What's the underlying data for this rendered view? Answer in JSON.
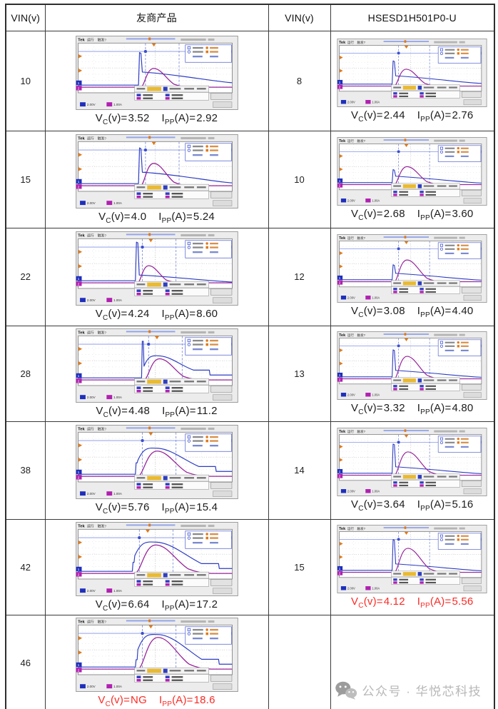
{
  "table": {
    "headers": [
      "VIN(v)",
      "友商产品",
      "VIN(v)",
      "HSESD1H501P0-U"
    ],
    "caption_format": {
      "v": "V",
      "v_sub": "C",
      "v_unit": "(v)=",
      "i": "I",
      "i_sub": "PP",
      "i_unit": "(A)="
    },
    "rows": [
      {
        "vin_left": "10",
        "left": {
          "vc": "3.52",
          "ipp": "2.92",
          "red": false,
          "wave": {
            "sx": 0.4,
            "spike": 0.8,
            "mid": 0.32,
            "tail": 0.18,
            "hump": 0.46,
            "humpW": 0.3,
            "blueHump": false
          }
        },
        "vin_right": "8",
        "right": {
          "vc": "2.44",
          "ipp": "2.76",
          "red": false,
          "wave": {
            "sx": 0.38,
            "spike": 0.62,
            "mid": 0.22,
            "tail": 0.14,
            "hump": 0.45,
            "humpW": 0.3,
            "blueHump": false
          }
        }
      },
      {
        "vin_left": "15",
        "left": {
          "vc": "4.0",
          "ipp": "5.24",
          "red": false,
          "wave": {
            "sx": 0.4,
            "spike": 0.88,
            "mid": 0.28,
            "tail": 0.14,
            "hump": 0.55,
            "humpW": 0.3,
            "blueHump": false
          }
        },
        "vin_right": "10",
        "right": {
          "vc": "2.68",
          "ipp": "3.60",
          "red": false,
          "wave": {
            "sx": 0.38,
            "spike": 0.35,
            "mid": 0.17,
            "tail": 0.11,
            "hump": 0.48,
            "humpW": 0.32,
            "blueHump": false
          }
        }
      },
      {
        "vin_left": "22",
        "left": {
          "vc": "4.24",
          "ipp": "8.60",
          "red": false,
          "wave": {
            "sx": 0.38,
            "spike": 0.95,
            "mid": 0.14,
            "tail": 0.09,
            "hump": 0.42,
            "humpW": 0.26,
            "blueHump": false
          }
        },
        "vin_right": "12",
        "right": {
          "vc": "3.08",
          "ipp": "4.40",
          "red": false,
          "wave": {
            "sx": 0.38,
            "spike": 0.4,
            "mid": 0.17,
            "tail": 0.11,
            "hump": 0.58,
            "humpW": 0.32,
            "blueHump": false
          }
        }
      },
      {
        "vin_left": "28",
        "left": {
          "vc": "4.48",
          "ipp": "11.2",
          "red": false,
          "wave": {
            "sx": 0.42,
            "spike": 0.9,
            "hump": 0.52,
            "humpW": 0.36,
            "blueHump": true
          }
        },
        "vin_right": "13",
        "right": {
          "vc": "3.32",
          "ipp": "4.80",
          "red": false,
          "wave": {
            "sx": 0.38,
            "spike": 0.72,
            "mid": 0.17,
            "tail": 0.11,
            "hump": 0.6,
            "humpW": 0.32,
            "blueHump": false
          }
        }
      },
      {
        "vin_left": "38",
        "left": {
          "vc": "5.76",
          "ipp": "15.4",
          "red": false,
          "wave": {
            "sx": 0.38,
            "spike": 0.28,
            "hump": 0.62,
            "humpW": 0.44,
            "blueHump": true
          }
        },
        "vin_right": "14",
        "right": {
          "vc": "3.64",
          "ipp": "5.16",
          "red": false,
          "wave": {
            "sx": 0.38,
            "spike": 0.78,
            "mid": 0.17,
            "tail": 0.11,
            "hump": 0.62,
            "humpW": 0.34,
            "blueHump": false
          }
        }
      },
      {
        "vin_left": "42",
        "left": {
          "vc": "6.64",
          "ipp": "17.2",
          "red": false,
          "wave": {
            "sx": 0.36,
            "spike": 0.22,
            "hump": 0.7,
            "humpW": 0.48,
            "blueHump": true
          }
        },
        "vin_right": "15",
        "right": {
          "vc": "4.12",
          "ipp": "5.56",
          "red": true,
          "wave": {
            "sx": 0.38,
            "spike": 0.82,
            "mid": 0.17,
            "tail": 0.11,
            "hump": 0.64,
            "humpW": 0.34,
            "blueHump": false
          }
        }
      },
      {
        "vin_left": "46",
        "left": {
          "vc": "NG",
          "ipp": "18.6",
          "red": true,
          "wave": {
            "sx": 0.38,
            "spike": 0.18,
            "hump": 0.78,
            "humpW": 0.46,
            "blueHump": true
          }
        },
        "vin_right": "",
        "right": null,
        "watermark": true
      }
    ]
  },
  "scope_chrome": {
    "brand": "Tek",
    "status": "运行",
    "trigger": "触发?",
    "ch1": "2.00V",
    "ch2": "1.00A"
  },
  "watermark": {
    "text": "公众号 · 华悦芯科技"
  },
  "colors": {
    "caption_black": "#1c1c1c",
    "caption_red": "#fa2b25",
    "trace_blue": "#2c3cc4",
    "trace_purple": "#97239a",
    "cursor_blue": "#6e7fd6",
    "marker_orange": "#e07818",
    "table_border": "#3a3a3a",
    "watermark_gray": "#b8b8b8"
  }
}
